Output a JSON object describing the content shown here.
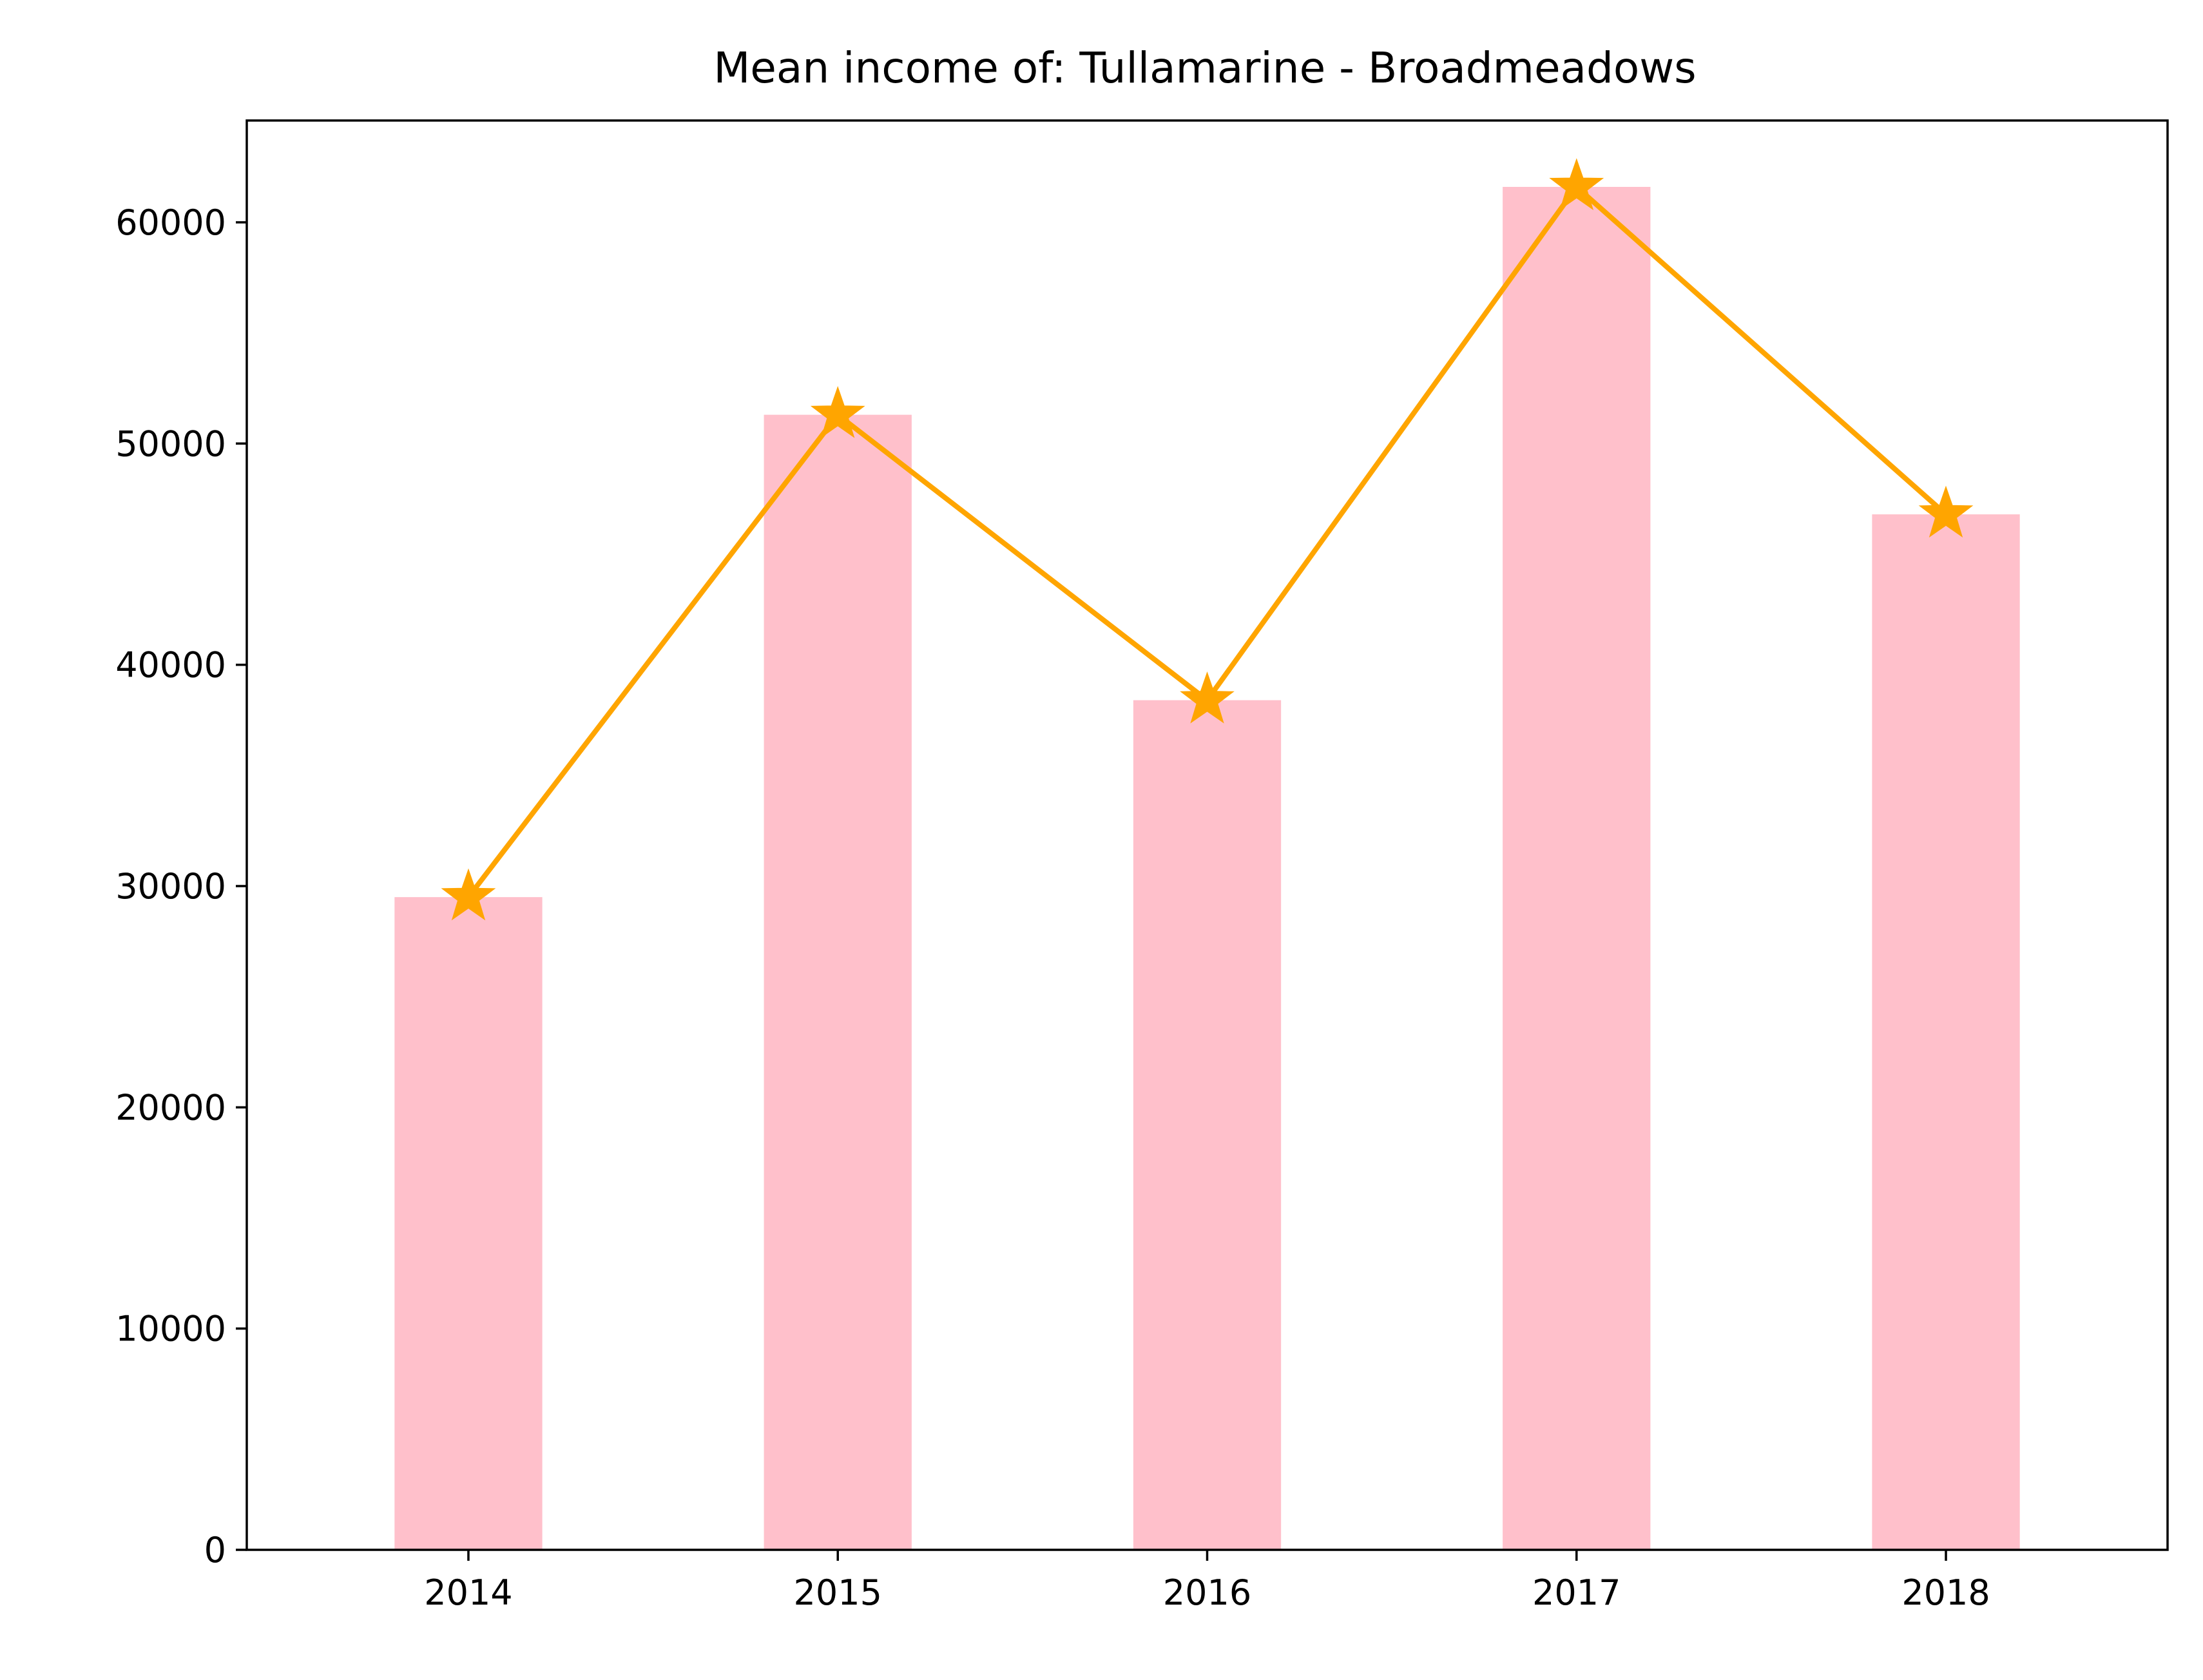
{
  "chart_data": {
    "type": "bar",
    "title": "Mean income of: Tullamarine - Broadmeadows",
    "xlabel": "",
    "ylabel": "",
    "categories": [
      "2014",
      "2015",
      "2016",
      "2017",
      "2018"
    ],
    "values": [
      29500,
      51300,
      38400,
      61600,
      46800
    ],
    "ylim": [
      0,
      64600
    ],
    "yticks": [
      0,
      10000,
      20000,
      30000,
      40000,
      50000,
      60000
    ],
    "ytick_labels": [
      "0",
      "10000",
      "20000",
      "30000",
      "40000",
      "50000",
      "60000"
    ],
    "grid": false,
    "legend": "none",
    "bar_color": "#ffc0cb",
    "line_color": "#ffa500",
    "line_marker": "star"
  }
}
